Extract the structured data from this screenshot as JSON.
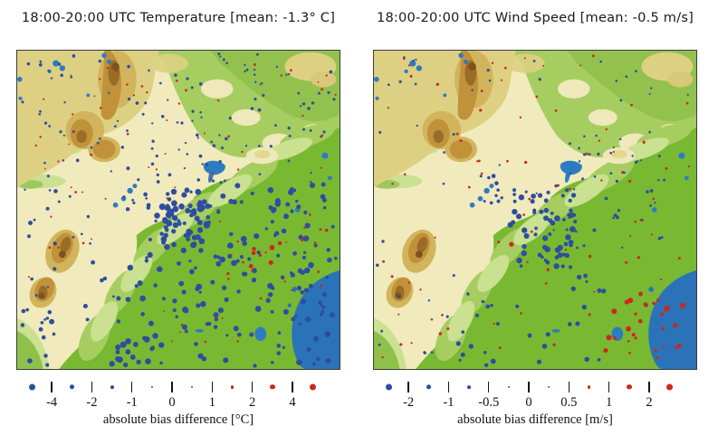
{
  "figure": {
    "background": "#ffffff",
    "palette": {
      "dot_blue": "#2e4d9f",
      "dot_red": "#cd271c",
      "sea": "#2b73b8",
      "lake": "#2e7cc0",
      "plain_green": "#79b932",
      "mid_green": "#a6cd60",
      "pale_green": "#c9e191",
      "cream": "#f1eabc",
      "tan": "#ddd083",
      "brown": "#c0923a",
      "dark_brown": "#9a6c28",
      "darkest_brown": "#7a531e",
      "text": "#111111"
    }
  },
  "panels": [
    {
      "id": "temperature",
      "title": "18:00-20:00 UTC Temperature [mean: -1.3° C]",
      "legend": {
        "axis_label": "absolute bias difference [°C]",
        "tick_labels": [
          "-4",
          "-2",
          "-1",
          "0",
          "1",
          "2",
          "4"
        ],
        "dot_diameters": [
          7,
          5.4,
          3.8,
          2.2,
          2.2,
          3.8,
          5.4,
          7
        ],
        "dot_colors": [
          "blue",
          "blue",
          "blue",
          "blue",
          "red",
          "red",
          "red",
          "red"
        ]
      },
      "clusters": [
        {
          "seed": 11,
          "n": 120,
          "x": [
            1,
            99
          ],
          "y": [
            1,
            42
          ],
          "r": [
            1.1,
            1.9
          ],
          "c": "blue"
        },
        {
          "seed": 12,
          "n": 48,
          "x": [
            3,
            99
          ],
          "y": [
            3,
            48
          ],
          "r": [
            0.9,
            1.5
          ],
          "c": "red"
        },
        {
          "seed": 13,
          "n": 26,
          "x": [
            1,
            30
          ],
          "y": [
            42,
            88
          ],
          "r": [
            1.2,
            2.6
          ],
          "c": "blue"
        },
        {
          "seed": 14,
          "n": 8,
          "x": [
            2,
            26
          ],
          "y": [
            44,
            86
          ],
          "r": [
            0.9,
            1.4
          ],
          "c": "red"
        },
        {
          "seed": 15,
          "n": 85,
          "x": [
            40,
            99
          ],
          "y": [
            42,
            66
          ],
          "r": [
            1.6,
            3.4
          ],
          "c": "blue"
        },
        {
          "seed": 16,
          "n": 110,
          "x": [
            30,
            99
          ],
          "y": [
            64,
            99
          ],
          "r": [
            1.6,
            3.4
          ],
          "c": "blue"
        },
        {
          "seed": 17,
          "n": 42,
          "x": [
            44,
            60
          ],
          "y": [
            48,
            64
          ],
          "r": [
            2.2,
            3.8
          ],
          "c": "blue"
        },
        {
          "seed": 18,
          "n": 16,
          "x": [
            28,
            44
          ],
          "y": [
            88,
            99
          ],
          "r": [
            2.2,
            3.6
          ],
          "c": "blue"
        },
        {
          "seed": 19,
          "n": 12,
          "x": [
            1,
            12
          ],
          "y": [
            80,
            99
          ],
          "r": [
            1.6,
            3.0
          ],
          "c": "blue"
        },
        {
          "seed": 20,
          "n": 6,
          "x": [
            70,
            82
          ],
          "y": [
            58,
            68
          ],
          "r": [
            2.0,
            3.4
          ],
          "c": "red"
        },
        {
          "seed": 21,
          "n": 22,
          "x": [
            62,
            97
          ],
          "y": [
            50,
            80
          ],
          "r": [
            0.9,
            1.8
          ],
          "c": "red"
        },
        {
          "seed": 22,
          "n": 8,
          "x": [
            45,
            75
          ],
          "y": [
            80,
            97
          ],
          "r": [
            0.8,
            1.4
          ],
          "c": "red"
        },
        {
          "seed": 23,
          "n": 14,
          "x": [
            33,
            48
          ],
          "y": [
            36,
            50
          ],
          "r": [
            1.3,
            2.4
          ],
          "c": "blue"
        }
      ]
    },
    {
      "id": "wind-speed",
      "title": "18:00-20:00 UTC Wind Speed [mean: -0.5 m/s]",
      "legend": {
        "axis_label": "absolute bias difference [m/s]",
        "tick_labels": [
          "-2",
          "-1",
          "-0.5",
          "0",
          "0.5",
          "1",
          "2"
        ],
        "dot_diameters": [
          7,
          5.4,
          3.8,
          2.2,
          2.2,
          3.8,
          5.4,
          7
        ],
        "dot_colors": [
          "blue",
          "blue",
          "blue",
          "blue",
          "red",
          "red",
          "red",
          "red"
        ]
      },
      "clusters": [
        {
          "seed": 31,
          "n": 85,
          "x": [
            1,
            99
          ],
          "y": [
            1,
            99
          ],
          "r": [
            1.0,
            1.7
          ],
          "c": "red"
        },
        {
          "seed": 32,
          "n": 40,
          "x": [
            1,
            99
          ],
          "y": [
            1,
            45
          ],
          "r": [
            1.0,
            1.7
          ],
          "c": "blue"
        },
        {
          "seed": 33,
          "n": 55,
          "x": [
            42,
            62
          ],
          "y": [
            44,
            68
          ],
          "r": [
            1.8,
            3.4
          ],
          "c": "blue"
        },
        {
          "seed": 34,
          "n": 12,
          "x": [
            33,
            44
          ],
          "y": [
            38,
            48
          ],
          "r": [
            1.5,
            2.6
          ],
          "c": "blue"
        },
        {
          "seed": 35,
          "n": 30,
          "x": [
            55,
            90
          ],
          "y": [
            40,
            62
          ],
          "r": [
            1.1,
            2.2
          ],
          "c": "blue"
        },
        {
          "seed": 36,
          "n": 34,
          "x": [
            22,
            72
          ],
          "y": [
            66,
            99
          ],
          "r": [
            1.5,
            2.9
          ],
          "c": "blue"
        },
        {
          "seed": 37,
          "n": 18,
          "x": [
            68,
            90
          ],
          "y": [
            76,
            95
          ],
          "r": [
            1.4,
            3.2
          ],
          "c": "red"
        },
        {
          "seed": 38,
          "n": 6,
          "x": [
            86,
            97
          ],
          "y": [
            78,
            96
          ],
          "r": [
            1.8,
            3.4
          ],
          "c": "red"
        },
        {
          "seed": 39,
          "n": 8,
          "x": [
            1,
            20
          ],
          "y": [
            55,
            99
          ],
          "r": [
            1.0,
            1.8
          ],
          "c": "blue"
        },
        {
          "seed": 40,
          "n": 1,
          "x": [
            42,
            43
          ],
          "y": [
            60,
            61
          ],
          "r": [
            2.6,
            2.7
          ],
          "c": "red"
        },
        {
          "seed": 41,
          "n": 10,
          "x": [
            60,
            85
          ],
          "y": [
            30,
            40
          ],
          "r": [
            1.0,
            1.8
          ],
          "c": "blue"
        }
      ]
    }
  ],
  "chart_data": [
    {
      "type": "scatter",
      "title": "18:00-20:00 UTC Temperature [mean: -1.3° C]",
      "xlabel": "absolute bias difference [°C]",
      "mean": -1.3,
      "units": "°C",
      "size_scale_ticks": [
        -4,
        -2,
        -1,
        0,
        1,
        2,
        4
      ],
      "encoding": "dot size grows with |bias difference|; blue = negative bias, red = positive bias; legend alternates dot and tick (dot | dot | dot | dot | dot | dot | dot | dot)",
      "basemap": "terrain elevation map: tan/brown highlands in NW, cream mid-elevations, green plains in SE, sea bay in SE corner, small lakes",
      "distribution_summary": "dense field of large negative (blue) biases over SE green plains with a very dense core just left of center; sparse small blue/red dots over NW highlands; cluster of larger positive (red) biases east of center"
    },
    {
      "type": "scatter",
      "title": "18:00-20:00 UTC Wind Speed [mean: -0.5 m/s]",
      "xlabel": "absolute bias difference [m/s]",
      "mean": -0.5,
      "units": "m/s",
      "size_scale_ticks": [
        -2,
        -1,
        -0.5,
        0,
        0.5,
        1,
        2
      ],
      "encoding": "dot size grows with |bias difference|; blue = negative bias, red = positive bias; legend alternates dot and tick",
      "basemap": "same terrain elevation map as temperature panel",
      "distribution_summary": "sparse small red dots everywhere; compact cluster of medium blue (negative) biases at map center; cluster of positive (red) biases near SE coast by the sea bay"
    }
  ]
}
